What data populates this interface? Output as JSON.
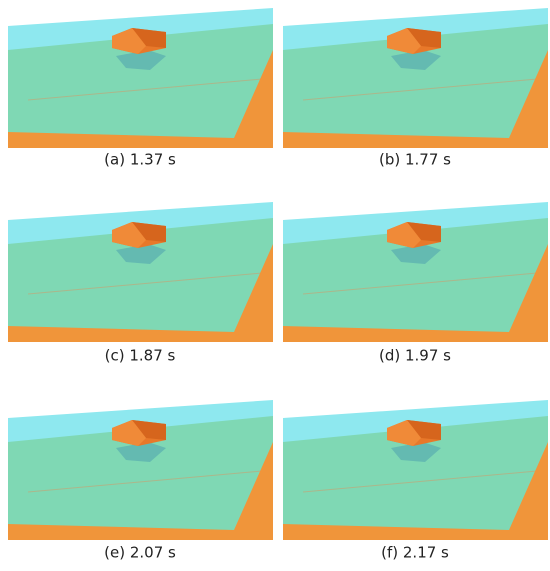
{
  "panels": [
    {
      "caption": "(a) 1.37 s"
    },
    {
      "caption": "(b) 1.77 s"
    },
    {
      "caption": "(c) 1.87 s"
    },
    {
      "caption": "(d) 1.97 s"
    },
    {
      "caption": "(e) 2.07 s"
    },
    {
      "caption": "(f) 2.17 s"
    }
  ]
}
